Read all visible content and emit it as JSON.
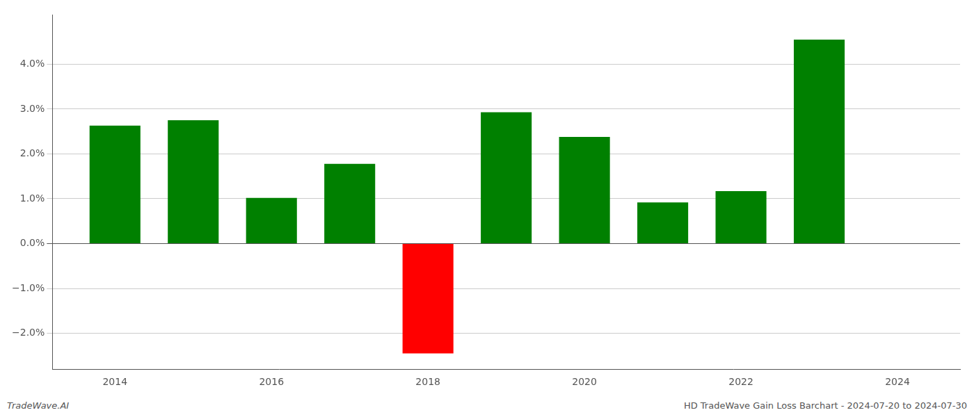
{
  "chart_data": {
    "type": "bar",
    "x": [
      2014,
      2015,
      2016,
      2017,
      2018,
      2019,
      2020,
      2021,
      2022,
      2023
    ],
    "values": [
      2.63,
      2.75,
      1.02,
      1.78,
      -2.45,
      2.93,
      2.38,
      0.92,
      1.17,
      4.55
    ],
    "colors": [
      "#008000",
      "#008000",
      "#008000",
      "#008000",
      "#ff0000",
      "#008000",
      "#008000",
      "#008000",
      "#008000",
      "#008000"
    ],
    "xlim": [
      2013.2,
      2024.8
    ],
    "xticks": [
      2014,
      2016,
      2018,
      2020,
      2022,
      2024
    ],
    "ylim": [
      -2.8,
      5.1
    ],
    "yticks": [
      {
        "value": -2.0,
        "label": "−2.0%"
      },
      {
        "value": -1.0,
        "label": "−1.0%"
      },
      {
        "value": 0.0,
        "label": "0.0%"
      },
      {
        "value": 1.0,
        "label": "1.0%"
      },
      {
        "value": 2.0,
        "label": "2.0%"
      },
      {
        "value": 3.0,
        "label": "3.0%"
      },
      {
        "value": 4.0,
        "label": "4.0%"
      }
    ],
    "grid": true,
    "annotations": [
      "TradeWave.AI",
      "HD TradeWave Gain Loss Barchart - 2024-07-20 to 2024-07-30"
    ]
  }
}
